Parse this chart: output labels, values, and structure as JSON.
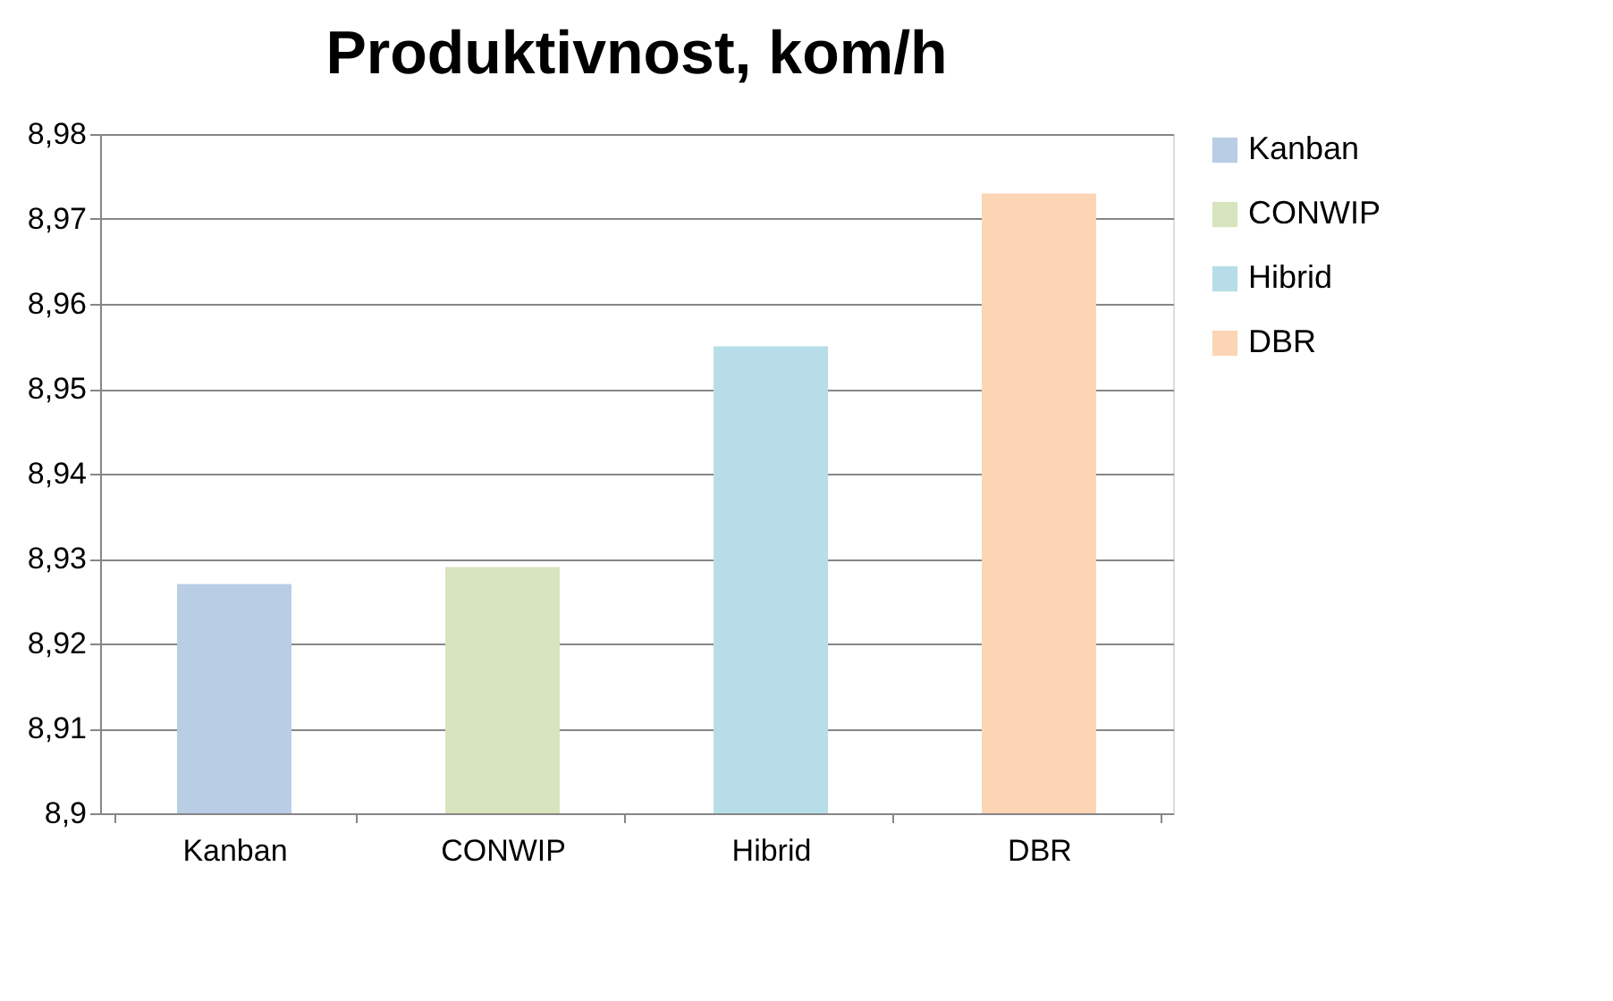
{
  "chart_data": {
    "type": "bar",
    "title": "Produktivnost, kom/h",
    "categories": [
      "Kanban",
      "CONWIP",
      "Hibrid",
      "DBR"
    ],
    "series": [
      {
        "name": "Kanban",
        "color": "#b9cde5",
        "values": [
          8.927,
          null,
          null,
          null
        ]
      },
      {
        "name": "CONWIP",
        "color": "#d7e4bd",
        "values": [
          null,
          8.929,
          null,
          null
        ]
      },
      {
        "name": "Hibrid",
        "color": "#b7dee8",
        "values": [
          null,
          null,
          8.955,
          null
        ]
      },
      {
        "name": "DBR",
        "color": "#fcd5b5",
        "values": [
          null,
          null,
          null,
          8.973
        ]
      }
    ],
    "ylim": [
      8.9,
      8.98
    ],
    "yticks": [
      {
        "value": 8.9,
        "label": "8,9"
      },
      {
        "value": 8.91,
        "label": "8,91"
      },
      {
        "value": 8.92,
        "label": "8,92"
      },
      {
        "value": 8.93,
        "label": "8,93"
      },
      {
        "value": 8.94,
        "label": "8,94"
      },
      {
        "value": 8.95,
        "label": "8,95"
      },
      {
        "value": 8.96,
        "label": "8,96"
      },
      {
        "value": 8.97,
        "label": "8,97"
      },
      {
        "value": 8.98,
        "label": "8,98"
      }
    ],
    "grid": "y",
    "legend": "right"
  }
}
